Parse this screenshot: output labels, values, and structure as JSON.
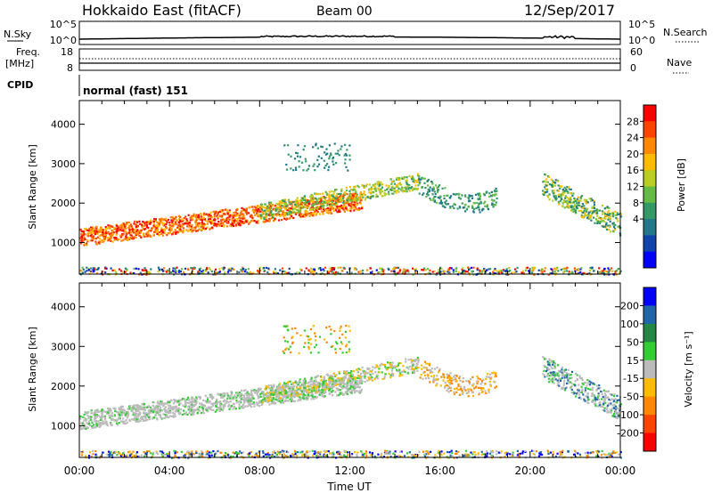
{
  "header": {
    "station": "Hokkaido East (fitACF)",
    "beam": "Beam 00",
    "date": "12/Sep/2017"
  },
  "top_panels": {
    "nsky_label": "N.Sky",
    "nsky_ticks": [
      "10^5",
      "10^0"
    ],
    "nsearch_label": "N.Search",
    "nsearch_ticks": [
      "10^5",
      "10^0"
    ],
    "freq_label_1": "Freq.",
    "freq_label_2": "[MHz]",
    "freq_ticks": [
      "18",
      "8"
    ],
    "nave_label": "Nave",
    "nave_ticks": [
      "60",
      "0"
    ],
    "cpid_label": "CPID",
    "cpid_value": "normal (fast) 151"
  },
  "chart_data": [
    {
      "type": "heatmap",
      "name": "power",
      "xlabel": "",
      "ylabel": "Slant Range [km]",
      "xlim": [
        0,
        24
      ],
      "ylim": [
        200,
        4600
      ],
      "yticks": [
        1000,
        2000,
        3000,
        4000
      ],
      "colorbar_label": "Power [dB]",
      "colorbar_ticks": [
        28,
        24,
        20,
        16,
        12,
        8,
        4
      ],
      "colorbar_colors": [
        "#ff0000",
        "#ff4400",
        "#ff8800",
        "#ffbb00",
        "#bbcc22",
        "#66bb44",
        "#339966",
        "#227788",
        "#1144aa",
        "#0000ff"
      ]
    },
    {
      "type": "heatmap",
      "name": "velocity",
      "xlabel": "Time UT",
      "ylabel": "Slant Range [km]",
      "xlim": [
        0,
        24
      ],
      "ylim": [
        200,
        4600
      ],
      "xticks": [
        "00:00",
        "04:00",
        "08:00",
        "12:00",
        "16:00",
        "20:00",
        "00:00"
      ],
      "yticks": [
        1000,
        2000,
        3000,
        4000
      ],
      "colorbar_label": "Velocity [m s⁻¹]",
      "colorbar_ticks": [
        200,
        100,
        50,
        15,
        -15,
        -50,
        -100,
        -200
      ],
      "colorbar_colors": [
        "#0000ff",
        "#2266aa",
        "#228844",
        "#33cc33",
        "#bbbbbb",
        "#ffbb00",
        "#ff8800",
        "#ff4400",
        "#ff0000"
      ]
    }
  ]
}
